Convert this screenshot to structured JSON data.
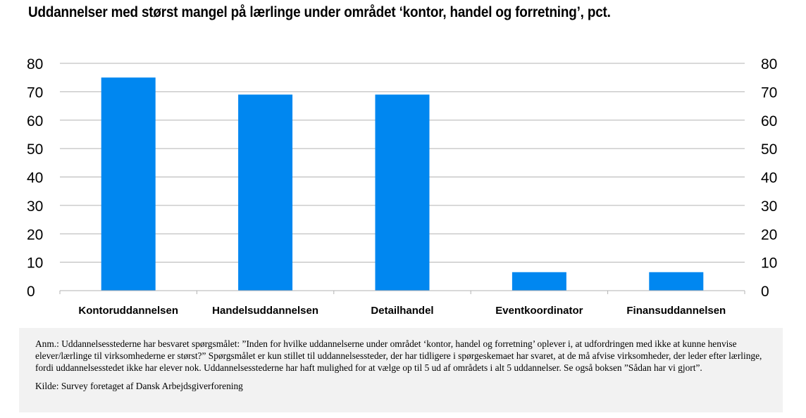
{
  "title": "Uddannelser med størst mangel på lærlinge under området ‘kontor, handel og forretning’, pct.",
  "colors": {
    "bar": "#0087f0",
    "grid": "#b3b3b3",
    "note_background": "#f2f2f2"
  },
  "chart_data": {
    "type": "bar",
    "title": "Uddannelser med størst mangel på lærlinge under området ‘kontor, handel og forretning’, pct.",
    "categories": [
      "Kontoruddannelsen",
      "Handelsuddannelsen",
      "Detailhandel",
      "Eventkoordinator",
      "Finansuddannelsen"
    ],
    "values": [
      75,
      69,
      69,
      6.5,
      6.5
    ],
    "xlabel": "",
    "ylabel": "",
    "ylim": [
      0,
      80
    ],
    "yticks": [
      "0",
      "10",
      "20",
      "30",
      "40",
      "50",
      "60",
      "70",
      "80"
    ],
    "secondary_axis": "right, same scale",
    "grid": true,
    "legend": "none"
  },
  "note": "Anm.: Uddannelsesstederne har besvaret spørgsmålet: ”Inden for hvilke uddannelserne under området ‘kontor, handel og forretning’ oplever i, at udfordringen med ikke at kunne henvise elever/lærlinge til virksomhederne er størst?” Spørgsmålet er kun stillet til uddannelsessteder, der har tidligere i spørgeskemaet har svaret, at de må afvise virksomheder, der leder efter lærlinge, fordi uddannelsesstedet ikke har elever nok. Uddannelsesstederne har haft mulighed for at vælge op til 5 ud af områdets i alt 5 uddannelser. Se også boksen ”Sådan har vi gjort”.",
  "source": "Kilde: Survey foretaget af Dansk Arbejdsgiverforening"
}
